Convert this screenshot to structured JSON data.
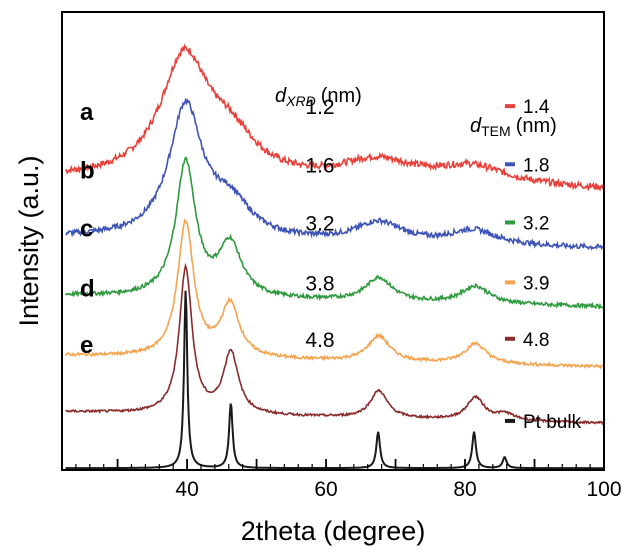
{
  "chart_data": {
    "type": "line",
    "xlabel": "2theta (degree)",
    "ylabel": "Intensity (a.u.)",
    "xlim": [
      22,
      100
    ],
    "x_ticks": [
      40,
      60,
      80,
      100
    ],
    "x_tick_labels": [
      "40",
      "60",
      "80",
      "100"
    ],
    "y_ticks_shown": false,
    "grid": false,
    "legend_placement": "right, beside each curve",
    "dxrd_header": {
      "symbol": "d",
      "subscript": "XRD",
      "unit": "(nm)"
    },
    "dtem_header": {
      "symbol": "d",
      "subscript": "TEM",
      "unit": "(nm)"
    },
    "series": [
      {
        "letter": "a",
        "dxrd": "1.2",
        "dtem": "1.4",
        "color": "#e8403a",
        "baseline": 8.0,
        "noise": 0.09,
        "peaks": [
          {
            "x": 39.6,
            "h": 3.3,
            "w": 4.2
          },
          {
            "x": 46.2,
            "h": 1.0,
            "w": 4.5
          },
          {
            "x": 67.3,
            "h": 0.6,
            "w": 6.5
          },
          {
            "x": 81.0,
            "h": 0.5,
            "w": 6.5
          }
        ]
      },
      {
        "letter": "b",
        "dxrd": "1.6",
        "dtem": "1.8",
        "color": "#3e54b6",
        "baseline": 6.4,
        "noise": 0.07,
        "peaks": [
          {
            "x": 39.8,
            "h": 3.6,
            "w": 2.9
          },
          {
            "x": 46.2,
            "h": 0.9,
            "w": 3.5
          },
          {
            "x": 67.6,
            "h": 0.55,
            "w": 4.0
          },
          {
            "x": 81.2,
            "h": 0.4,
            "w": 4.0
          }
        ]
      },
      {
        "letter": "c",
        "dxrd": "3.2",
        "dtem": "3.2",
        "color": "#2e9a3e",
        "baseline": 4.8,
        "noise": 0.05,
        "peaks": [
          {
            "x": 39.8,
            "h": 3.7,
            "w": 1.7
          },
          {
            "x": 46.2,
            "h": 1.45,
            "w": 2.0
          },
          {
            "x": 67.6,
            "h": 0.65,
            "w": 2.3
          },
          {
            "x": 81.5,
            "h": 0.48,
            "w": 2.4
          }
        ]
      },
      {
        "letter": "d",
        "dxrd": "3.8",
        "dtem": "3.9",
        "color": "#f5a34e",
        "baseline": 3.15,
        "noise": 0.04,
        "peaks": [
          {
            "x": 39.8,
            "h": 3.7,
            "w": 1.4
          },
          {
            "x": 46.2,
            "h": 1.45,
            "w": 1.6
          },
          {
            "x": 67.6,
            "h": 0.7,
            "w": 1.9
          },
          {
            "x": 81.5,
            "h": 0.55,
            "w": 1.9
          }
        ]
      },
      {
        "letter": "e",
        "dxrd": "4.8",
        "dtem": "4.8",
        "color": "#8a2a2a",
        "baseline": 1.6,
        "noise": 0.03,
        "peaks": [
          {
            "x": 39.8,
            "h": 4.0,
            "w": 1.1
          },
          {
            "x": 46.3,
            "h": 1.7,
            "w": 1.3
          },
          {
            "x": 67.6,
            "h": 0.75,
            "w": 1.5
          },
          {
            "x": 81.5,
            "h": 0.62,
            "w": 1.5
          },
          {
            "x": 85.8,
            "h": 0.18,
            "w": 1.6
          }
        ]
      },
      {
        "letter": "",
        "dxrd": "",
        "dtem": "Pt bulk",
        "color": "#1a1a1a",
        "baseline": 0.05,
        "noise": 0.0,
        "peaks": [
          {
            "x": 39.8,
            "h": 4.9,
            "w": 0.28
          },
          {
            "x": 46.3,
            "h": 1.8,
            "w": 0.3
          },
          {
            "x": 67.5,
            "h": 1.0,
            "w": 0.32
          },
          {
            "x": 81.3,
            "h": 1.0,
            "w": 0.32
          },
          {
            "x": 85.7,
            "h": 0.3,
            "w": 0.34
          }
        ]
      }
    ]
  }
}
